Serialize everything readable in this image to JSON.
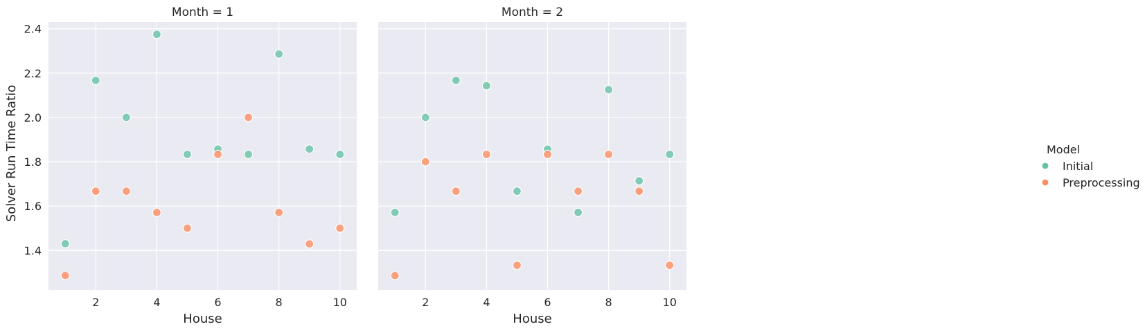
{
  "chart_data": {
    "type": "scatter",
    "title": "",
    "ylabel": "Solver Run Time Ratio",
    "ylim": [
      1.22,
      2.43
    ],
    "yticks": [
      1.4,
      1.6,
      1.8,
      2.0,
      2.2,
      2.4
    ],
    "xlim": [
      0.45,
      10.55
    ],
    "xticks": [
      2,
      4,
      6,
      8,
      10
    ],
    "grid": true,
    "legend": {
      "title": "Model",
      "position": "right",
      "entries": [
        {
          "name": "Initial",
          "color": "#66c2a5"
        },
        {
          "name": "Preprocessing",
          "color": "#fc8d62"
        }
      ]
    },
    "panels": [
      {
        "title": "Month = 1",
        "xlabel": "House",
        "series": [
          {
            "name": "Initial",
            "color": "#66c2a5",
            "x": [
              1,
              2,
              3,
              4,
              5,
              6,
              7,
              8,
              9,
              10
            ],
            "y": [
              1.43,
              2.167,
              2.0,
              2.375,
              1.833,
              1.857,
              1.833,
              2.286,
              1.857,
              1.833
            ]
          },
          {
            "name": "Preprocessing",
            "color": "#fc8d62",
            "x": [
              1,
              2,
              3,
              4,
              5,
              6,
              7,
              8,
              9,
              10
            ],
            "y": [
              1.286,
              1.667,
              1.667,
              1.571,
              1.5,
              1.833,
              2.0,
              1.571,
              1.429,
              1.5
            ]
          }
        ]
      },
      {
        "title": "Month = 2",
        "xlabel": "House",
        "series": [
          {
            "name": "Initial",
            "color": "#66c2a5",
            "x": [
              1,
              2,
              3,
              4,
              5,
              6,
              7,
              8,
              9,
              10
            ],
            "y": [
              1.571,
              2.0,
              2.167,
              2.143,
              1.667,
              1.857,
              1.571,
              2.125,
              1.714,
              1.833
            ]
          },
          {
            "name": "Preprocessing",
            "color": "#fc8d62",
            "x": [
              1,
              2,
              3,
              4,
              5,
              6,
              7,
              8,
              9,
              10
            ],
            "y": [
              1.286,
              1.8,
              1.667,
              1.833,
              1.333,
              1.833,
              1.667,
              1.833,
              1.667,
              1.333
            ]
          }
        ]
      }
    ]
  }
}
